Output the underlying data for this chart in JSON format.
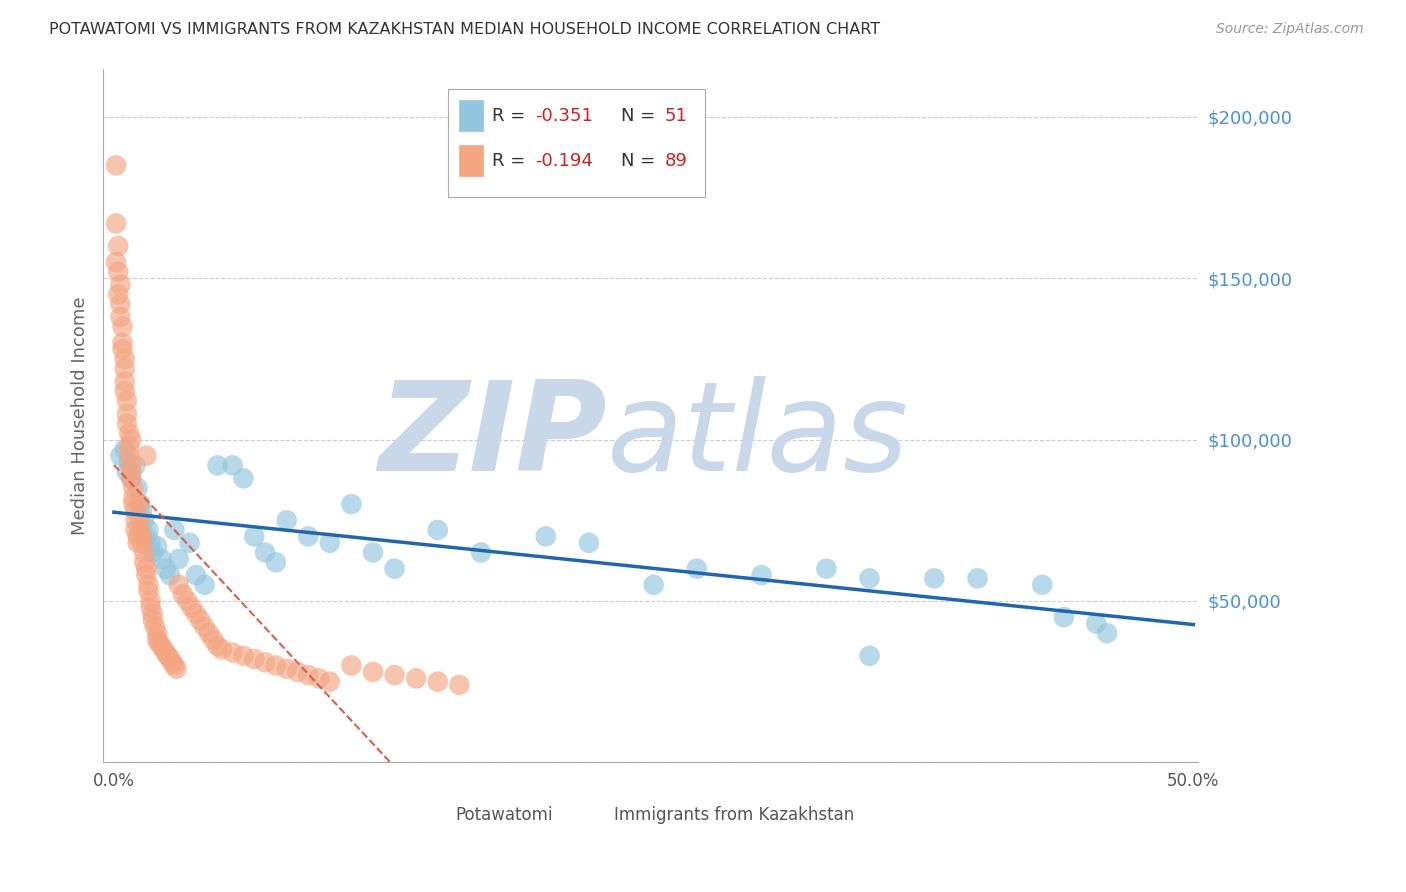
{
  "title": "POTAWATOMI VS IMMIGRANTS FROM KAZAKHSTAN MEDIAN HOUSEHOLD INCOME CORRELATION CHART",
  "source": "Source: ZipAtlas.com",
  "ylabel": "Median Household Income",
  "xlim": [
    -0.005,
    0.502
  ],
  "ylim": [
    0,
    215000
  ],
  "yticks": [
    0,
    50000,
    100000,
    150000,
    200000
  ],
  "ytick_labels": [
    "",
    "$50,000",
    "$100,000",
    "$150,000",
    "$200,000"
  ],
  "xticks": [
    0.0,
    0.1,
    0.2,
    0.3,
    0.4,
    0.5
  ],
  "xtick_labels": [
    "0.0%",
    "",
    "",
    "",
    "",
    "50.0%"
  ],
  "background_color": "#ffffff",
  "grid_color": "#cccccc",
  "blue_color": "#92c5de",
  "blue_line_color": "#2166ac",
  "pink_color": "#f4a582",
  "pink_line_color": "#d6604d",
  "title_color": "#333333",
  "axis_label_color": "#666666",
  "ytick_label_color": "#4a90d9",
  "source_color": "#999999",
  "legend_R1": "-0.351",
  "legend_N1": "51",
  "legend_R2": "-0.194",
  "legend_N2": "89",
  "watermark_ZIP_color": "#c8ddf0",
  "watermark_atlas_color": "#b8cce4"
}
